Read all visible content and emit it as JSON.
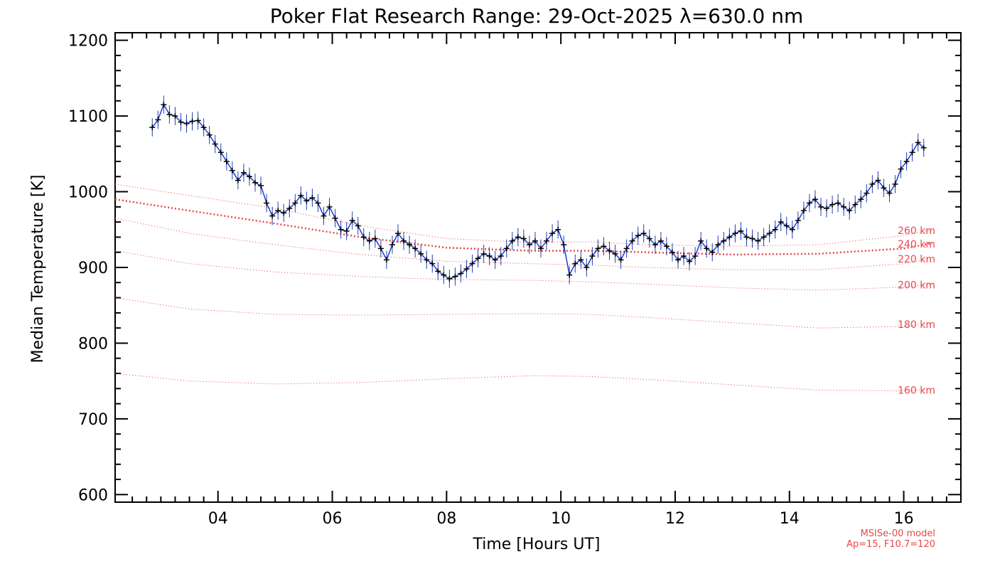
{
  "chart_data": {
    "type": "line",
    "title": "Poker Flat Research Range: 29-Oct-2025 λ=630.0 nm",
    "xlabel": "Time [Hours UT]",
    "ylabel": "Median Temperature [K]",
    "xlim": [
      2.2,
      17.0
    ],
    "ylim": [
      590,
      1210
    ],
    "x_ticks": [
      4,
      6,
      8,
      10,
      12,
      14,
      16
    ],
    "x_tick_labels": [
      "04",
      "06",
      "08",
      "10",
      "12",
      "14",
      "16"
    ],
    "y_ticks": [
      600,
      700,
      800,
      900,
      1000,
      1100,
      1200
    ],
    "y_tick_labels": [
      "600",
      "700",
      "800",
      "900",
      "1000",
      "1100",
      "1200"
    ],
    "grid": false,
    "series": [
      {
        "kind": "measured",
        "color": "#1f3fbf",
        "marker_color": "#000000",
        "x": [
          2.85,
          2.95,
          3.05,
          3.15,
          3.25,
          3.35,
          3.45,
          3.55,
          3.65,
          3.75,
          3.85,
          3.95,
          4.05,
          4.15,
          4.25,
          4.35,
          4.45,
          4.55,
          4.65,
          4.75,
          4.85,
          4.95,
          5.05,
          5.15,
          5.25,
          5.35,
          5.45,
          5.55,
          5.65,
          5.75,
          5.85,
          5.95,
          6.05,
          6.15,
          6.25,
          6.35,
          6.45,
          6.55,
          6.65,
          6.75,
          6.85,
          6.95,
          7.05,
          7.15,
          7.25,
          7.35,
          7.45,
          7.55,
          7.65,
          7.75,
          7.85,
          7.95,
          8.05,
          8.15,
          8.25,
          8.35,
          8.45,
          8.55,
          8.65,
          8.75,
          8.85,
          8.95,
          9.05,
          9.15,
          9.25,
          9.35,
          9.45,
          9.55,
          9.65,
          9.75,
          9.85,
          9.95,
          10.05,
          10.15,
          10.25,
          10.35,
          10.45,
          10.55,
          10.65,
          10.75,
          10.85,
          10.95,
          11.05,
          11.15,
          11.25,
          11.35,
          11.45,
          11.55,
          11.65,
          11.75,
          11.85,
          11.95,
          12.05,
          12.15,
          12.25,
          12.35,
          12.45,
          12.55,
          12.65,
          12.75,
          12.85,
          12.95,
          13.05,
          13.15,
          13.25,
          13.35,
          13.45,
          13.55,
          13.65,
          13.75,
          13.85,
          13.95,
          14.05,
          14.15,
          14.25,
          14.35,
          14.45,
          14.55,
          14.65,
          14.75,
          14.85,
          14.95,
          15.05,
          15.15,
          15.25,
          15.35,
          15.45,
          15.55,
          15.65,
          15.75,
          15.85,
          15.95,
          16.05,
          16.15,
          16.25,
          16.35
        ],
        "y": [
          1085,
          1095,
          1115,
          1102,
          1100,
          1092,
          1090,
          1093,
          1094,
          1085,
          1075,
          1063,
          1052,
          1040,
          1028,
          1015,
          1025,
          1020,
          1012,
          1008,
          985,
          968,
          975,
          972,
          978,
          985,
          995,
          988,
          992,
          985,
          968,
          980,
          965,
          950,
          948,
          962,
          955,
          940,
          935,
          938,
          925,
          910,
          930,
          945,
          935,
          930,
          925,
          918,
          910,
          905,
          895,
          890,
          885,
          888,
          892,
          898,
          905,
          912,
          918,
          915,
          910,
          915,
          925,
          935,
          940,
          938,
          930,
          935,
          925,
          935,
          945,
          950,
          930,
          890,
          905,
          910,
          900,
          915,
          925,
          928,
          922,
          918,
          910,
          925,
          935,
          942,
          945,
          938,
          930,
          935,
          928,
          920,
          910,
          915,
          908,
          915,
          935,
          925,
          920,
          930,
          935,
          940,
          945,
          948,
          940,
          938,
          935,
          940,
          945,
          950,
          960,
          955,
          950,
          962,
          975,
          985,
          990,
          980,
          978,
          983,
          985,
          980,
          975,
          983,
          990,
          998,
          1010,
          1015,
          1005,
          998,
          1010,
          1030,
          1040,
          1052,
          1065,
          1058
        ],
        "error": 12
      },
      {
        "kind": "model",
        "name": "160 km",
        "x": [
          2.2,
          3.5,
          5.0,
          6.5,
          8.0,
          9.5,
          10.5,
          11.5,
          13.0,
          14.5,
          16.0,
          16.5
        ],
        "y": [
          760,
          750,
          746,
          748,
          753,
          757,
          756,
          752,
          745,
          738,
          737,
          739
        ]
      },
      {
        "kind": "model",
        "name": "180 km",
        "x": [
          2.2,
          3.5,
          5.0,
          6.5,
          8.0,
          9.5,
          10.5,
          11.5,
          13.0,
          14.5,
          16.0,
          16.5
        ],
        "y": [
          860,
          845,
          838,
          837,
          838,
          839,
          838,
          834,
          827,
          820,
          822,
          826
        ]
      },
      {
        "kind": "model",
        "name": "200 km",
        "x": [
          2.2,
          3.5,
          5.0,
          6.5,
          8.0,
          9.5,
          10.5,
          11.5,
          13.0,
          14.5,
          16.0,
          16.5
        ],
        "y": [
          922,
          905,
          894,
          888,
          884,
          883,
          881,
          878,
          873,
          870,
          874,
          878
        ]
      },
      {
        "kind": "model",
        "name": "220 km",
        "x": [
          2.2,
          3.5,
          5.0,
          6.5,
          8.0,
          9.5,
          10.5,
          11.5,
          13.0,
          14.5,
          16.0,
          16.5
        ],
        "y": [
          965,
          945,
          930,
          917,
          908,
          905,
          903,
          900,
          897,
          897,
          905,
          912
        ]
      },
      {
        "kind": "model",
        "name": "240 km",
        "bold": true,
        "x": [
          2.2,
          3.5,
          5.0,
          6.5,
          8.0,
          9.5,
          10.5,
          11.5,
          13.0,
          14.5,
          16.0,
          16.5
        ],
        "y": [
          990,
          975,
          958,
          940,
          926,
          922,
          922,
          920,
          917,
          918,
          925,
          932
        ]
      },
      {
        "kind": "model",
        "name": "260 km",
        "x": [
          2.2,
          3.5,
          5.0,
          6.5,
          8.0,
          9.5,
          10.5,
          11.5,
          13.0,
          14.5,
          16.0,
          16.5
        ],
        "y": [
          1010,
          995,
          978,
          955,
          938,
          933,
          934,
          930,
          928,
          930,
          942,
          950
        ]
      }
    ],
    "model_note": [
      "MSISe-00 model",
      "Ap=15, F10.7=120"
    ]
  },
  "colors": {
    "measured_line": "#1f3fbf",
    "measured_marker": "#000000",
    "model": "#e8474b"
  }
}
